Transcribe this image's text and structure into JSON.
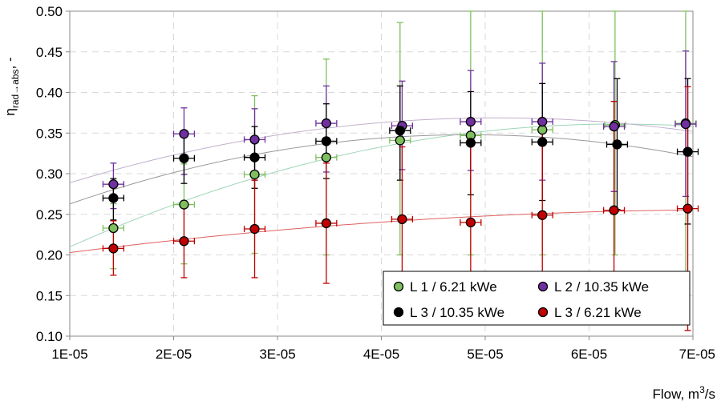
{
  "chart_data": {
    "type": "scatter",
    "xlabel": "Flow, m³/s",
    "ylabel": "η rad→abs, -",
    "ylabel_symbol": "η",
    "ylabel_sub": "rad→abs",
    "ylabel_tail": ", -",
    "xlabel_main": "Flow, m",
    "xlabel_sup": "3",
    "xlabel_tail": "/s",
    "xlim": [
      1e-05,
      7e-05
    ],
    "ylim": [
      0.1,
      0.5
    ],
    "x_ticks": [
      1e-05,
      2e-05,
      3e-05,
      4e-05,
      5e-05,
      6e-05,
      7e-05
    ],
    "x_tick_labels": [
      "1E-05",
      "2E-05",
      "3E-05",
      "4E-05",
      "5E-05",
      "6E-05",
      "7E-05"
    ],
    "y_ticks": [
      0.1,
      0.15,
      0.2,
      0.25,
      0.3,
      0.35,
      0.4,
      0.45,
      0.5
    ],
    "y_tick_labels": [
      "0.10",
      "0.15",
      "0.20",
      "0.25",
      "0.30",
      "0.35",
      "0.40",
      "0.45",
      "0.50"
    ],
    "grid": true,
    "legend_position": "bottom-right",
    "series": [
      {
        "name": "L 1 / 6.21 kWe",
        "color": "#7fbf5f",
        "curve_color": "#9fd6b8",
        "x": [
          1.42e-05,
          2.1e-05,
          2.78e-05,
          3.47e-05,
          4.18e-05,
          4.86e-05,
          5.55e-05,
          6.25e-05,
          6.93e-05
        ],
        "y": [
          0.233,
          0.262,
          0.299,
          0.32,
          0.341,
          0.347,
          0.354,
          0.36,
          0.362
        ],
        "y_err_low": [
          0.05,
          0.073,
          0.097,
          0.12,
          0.141,
          0.147,
          0.154,
          0.16,
          0.242
        ],
        "y_err_high": [
          0.03,
          0.05,
          0.097,
          0.121,
          0.145,
          0.153,
          0.146,
          0.14,
          0.138
        ],
        "x_err": [
          1e-06,
          1e-06,
          1e-06,
          1e-06,
          1e-06,
          1e-06,
          1e-06,
          1e-06,
          1e-06
        ]
      },
      {
        "name": "L 2 / 10.35 kWe",
        "color": "#7030a0",
        "curve_color": "#c0b0cc",
        "x": [
          1.42e-05,
          2.1e-05,
          2.78e-05,
          3.47e-05,
          4.2e-05,
          4.86e-05,
          5.55e-05,
          6.24e-05,
          6.93e-05
        ],
        "y": [
          0.287,
          0.349,
          0.342,
          0.362,
          0.359,
          0.364,
          0.364,
          0.358,
          0.361
        ],
        "y_err_low": [
          0.03,
          0.05,
          0.05,
          0.06,
          0.054,
          0.06,
          0.072,
          0.08,
          0.089
        ],
        "y_err_high": [
          0.026,
          0.032,
          0.038,
          0.046,
          0.055,
          0.063,
          0.072,
          0.08,
          0.09
        ],
        "x_err": [
          1e-06,
          1e-06,
          1e-06,
          1e-06,
          1e-06,
          1e-06,
          1e-06,
          1e-06,
          1e-06
        ]
      },
      {
        "name": "L 3 / 10.35 kWe",
        "color": "#000000",
        "curve_color": "#999999",
        "x": [
          1.42e-05,
          2.1e-05,
          2.78e-05,
          3.47e-05,
          4.18e-05,
          4.86e-05,
          5.55e-05,
          6.27e-05,
          6.95e-05
        ],
        "y": [
          0.27,
          0.319,
          0.32,
          0.34,
          0.353,
          0.338,
          0.339,
          0.336,
          0.327
        ],
        "y_err_low": [
          0.027,
          0.031,
          0.038,
          0.046,
          0.061,
          0.064,
          0.072,
          0.08,
          0.089
        ],
        "y_err_high": [
          0.024,
          0.03,
          0.038,
          0.046,
          0.055,
          0.063,
          0.072,
          0.081,
          0.09
        ],
        "x_err": [
          1e-06,
          1e-06,
          1e-06,
          1e-06,
          1e-06,
          1e-06,
          1e-06,
          1e-06,
          1e-06
        ]
      },
      {
        "name": "L 3 / 6.21 kWe",
        "color": "#c00000",
        "curve_color": "#e06060",
        "x": [
          1.42e-05,
          2.1e-05,
          2.78e-05,
          3.47e-05,
          4.2e-05,
          4.86e-05,
          5.55e-05,
          6.24e-05,
          6.95e-05
        ],
        "y": [
          0.208,
          0.217,
          0.232,
          0.239,
          0.244,
          0.24,
          0.249,
          0.255,
          0.257
        ],
        "y_err_low": [
          0.033,
          0.045,
          0.06,
          0.074,
          0.088,
          0.102,
          0.116,
          0.13,
          0.15
        ],
        "y_err_high": [
          0.034,
          0.045,
          0.06,
          0.074,
          0.089,
          0.102,
          0.116,
          0.134,
          0.15
        ],
        "x_err": [
          1e-06,
          1e-06,
          1e-06,
          1e-06,
          1e-06,
          1e-06,
          1e-06,
          1e-06,
          1e-06
        ]
      }
    ]
  }
}
